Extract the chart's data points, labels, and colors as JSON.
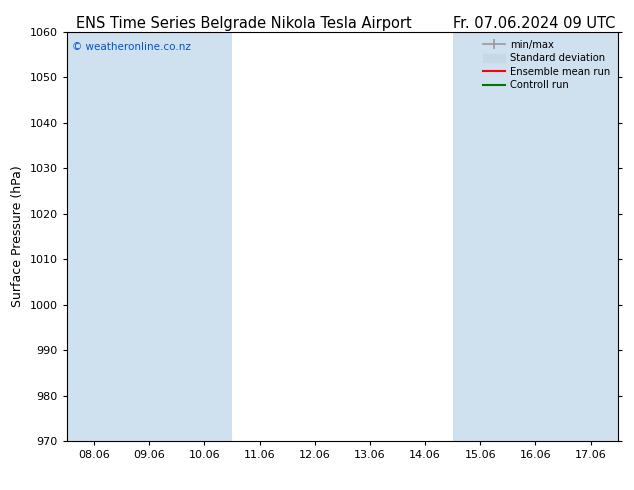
{
  "title_left": "ENS Time Series Belgrade Nikola Tesla Airport",
  "title_right": "Fr. 07.06.2024 09 UTC",
  "ylabel": "Surface Pressure (hPa)",
  "ylim": [
    970,
    1060
  ],
  "yticks": [
    970,
    980,
    990,
    1000,
    1010,
    1020,
    1030,
    1040,
    1050,
    1060
  ],
  "x_labels": [
    "08.06",
    "09.06",
    "10.06",
    "11.06",
    "12.06",
    "13.06",
    "14.06",
    "15.06",
    "16.06",
    "17.06"
  ],
  "watermark": "© weatheronline.co.nz",
  "watermark_color": "#0055cc",
  "bg_color": "#ffffff",
  "plot_bg_color": "#ffffff",
  "shaded_band_color": "#cfe0ef",
  "shaded_columns_x": [
    0,
    1,
    2,
    7,
    8,
    9
  ],
  "legend_items": [
    {
      "label": "min/max",
      "color": "#aaaaaa",
      "lw": 1.5
    },
    {
      "label": "Standard deviation",
      "color": "#c5d8e8",
      "lw": 6
    },
    {
      "label": "Ensemble mean run",
      "color": "#ff0000",
      "lw": 1.5
    },
    {
      "label": "Controll run",
      "color": "#007700",
      "lw": 1.5
    }
  ],
  "title_fontsize": 10.5,
  "tick_fontsize": 8,
  "ylabel_fontsize": 9
}
